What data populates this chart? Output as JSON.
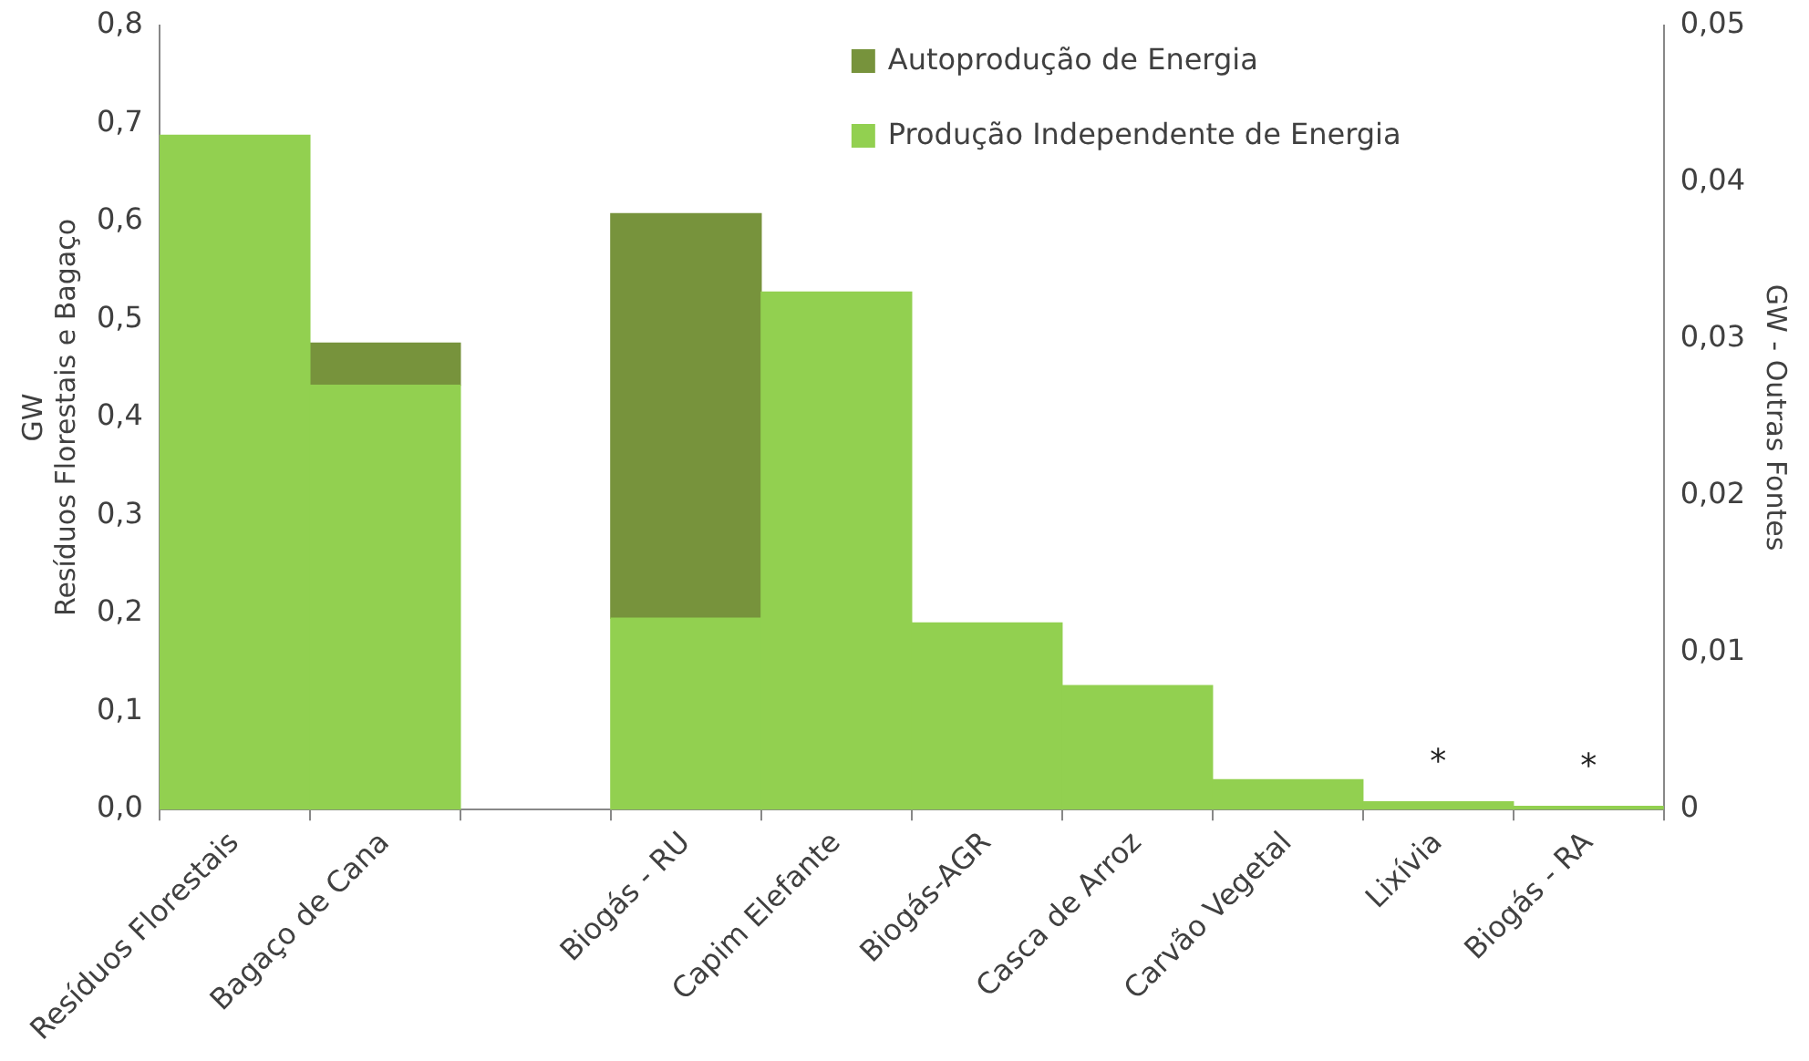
{
  "chart_data": {
    "type": "bar",
    "stacked": true,
    "ylabel": "GW\nResíduos Florestais e Bagaço",
    "y2label": "GW - Outras Fontes",
    "categories": [
      "Resíduos Florestais",
      "Bagaço de Cana",
      null,
      "Biogás - RU",
      "Capim Elefante",
      "Biogás-AGR",
      "Casca de Arroz",
      "Carvão Vegetal",
      "Lixívia",
      "Biogás - RA"
    ],
    "series": [
      {
        "name": "Produção Independente de Energia",
        "color": "#92d050",
        "axis": "y",
        "values": [
          0.688,
          0.433,
          null,
          null,
          null,
          null,
          null,
          null,
          null,
          null
        ]
      },
      {
        "name": "Autoprodução de Energia",
        "color": "#77933c",
        "axis": "y",
        "values": [
          null,
          0.043,
          null,
          null,
          null,
          null,
          null,
          null,
          null,
          null
        ]
      },
      {
        "color": "#92d050",
        "axis": "y2",
        "values": [
          null,
          null,
          null,
          0.0122,
          0.033,
          0.0119,
          0.0079,
          0.0019,
          0.0005,
          0.0002
        ]
      },
      {
        "color": "#77933c",
        "axis": "y2",
        "values": [
          null,
          null,
          null,
          0.0258,
          null,
          null,
          null,
          null,
          null,
          null
        ]
      }
    ],
    "ylim": [
      0,
      0.8
    ],
    "yticks": [
      {
        "value": 0,
        "label": "0,0"
      },
      {
        "value": 0.1,
        "label": "0,1"
      },
      {
        "value": 0.2,
        "label": "0,2"
      },
      {
        "value": 0.3,
        "label": "0,3"
      },
      {
        "value": 0.4,
        "label": "0,4"
      },
      {
        "value": 0.5,
        "label": "0,5"
      },
      {
        "value": 0.6,
        "label": "0,6"
      },
      {
        "value": 0.7,
        "label": "0,7"
      },
      {
        "value": 0.8,
        "label": "0,8"
      }
    ],
    "y2lim": [
      0,
      0.05
    ],
    "y2ticks": [
      0,
      {
        "value": 0.01,
        "label": "0,01"
      },
      {
        "value": 0.02,
        "label": "0,02"
      },
      {
        "value": 0.03,
        "label": "0,03"
      },
      {
        "value": 0.04,
        "label": "0,04"
      },
      {
        "value": 0.05,
        "label": "0,05"
      }
    ],
    "annotations": [
      {
        "text": "*",
        "x": "Lixívia",
        "y": 0.0005
      },
      {
        "text": "*",
        "x": "Biogás - RA",
        "y": 0.0002
      }
    ],
    "legend": "top right",
    "grid": false
  }
}
